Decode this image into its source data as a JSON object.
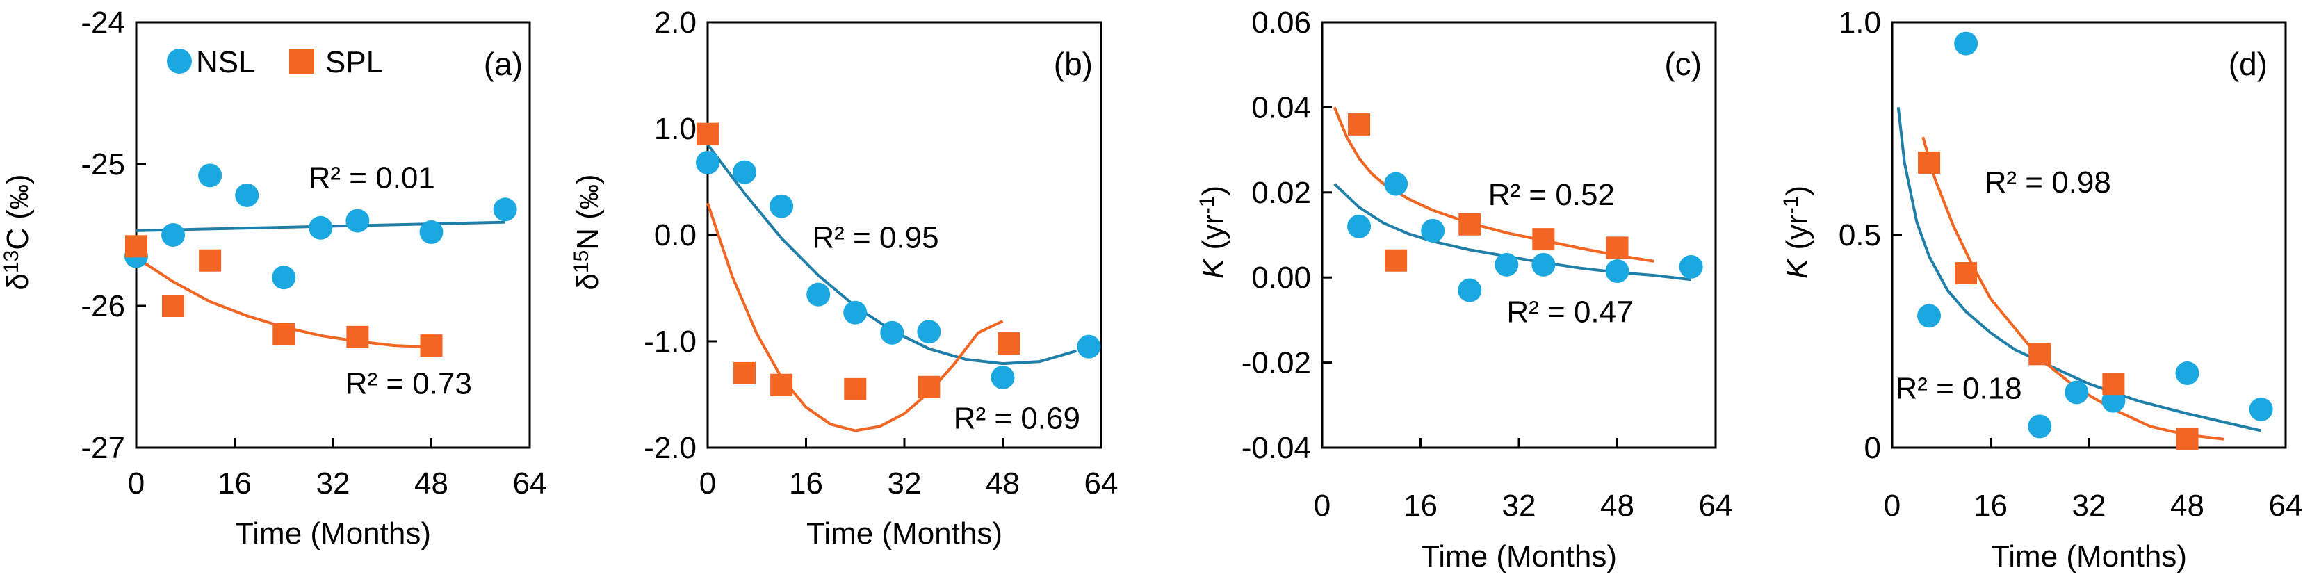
{
  "colors": {
    "nsl": "#1BA8E0",
    "spl": "#F26522",
    "nsl_fit": "#1F7FA8",
    "spl_fit": "#F26522"
  },
  "legend": {
    "nsl": "NSL",
    "spl": "SPL"
  },
  "chart_data": [
    {
      "type": "scatter",
      "tag": "(a)",
      "title": "",
      "xlabel": "Time (Months)",
      "ylabel": {
        "pre": "δ",
        "sup": "13",
        "mid": "C (",
        "unit": "‰",
        "post": ")"
      },
      "xlim": [
        0,
        64
      ],
      "ylim": [
        -27,
        -24
      ],
      "xticks": [
        0,
        16,
        32,
        48,
        64
      ],
      "yticks": [
        -27,
        -26,
        -25,
        -24
      ],
      "series": [
        {
          "name": "NSL",
          "marker": "circle",
          "x": [
            0,
            6,
            12,
            18,
            24,
            30,
            36,
            48,
            60
          ],
          "y": [
            -25.65,
            -25.5,
            -25.08,
            -25.22,
            -25.8,
            -25.45,
            -25.4,
            -25.48,
            -25.32
          ]
        },
        {
          "name": "SPL",
          "marker": "square",
          "x": [
            0,
            6,
            12,
            24,
            36,
            48
          ],
          "y": [
            -25.58,
            -26.0,
            -25.68,
            -26.2,
            -26.22,
            -26.28
          ]
        }
      ],
      "fits": [
        {
          "series": "NSL",
          "x": [
            0,
            10,
            20,
            30,
            40,
            50,
            60
          ],
          "y": [
            -25.47,
            -25.46,
            -25.45,
            -25.44,
            -25.43,
            -25.42,
            -25.41
          ]
        },
        {
          "series": "SPL",
          "x": [
            0,
            6,
            12,
            18,
            24,
            30,
            36,
            42,
            48
          ],
          "y": [
            -25.66,
            -25.83,
            -25.97,
            -26.07,
            -26.15,
            -26.21,
            -26.25,
            -26.28,
            -26.29
          ]
        }
      ],
      "annotations": [
        {
          "text": "R² = 0.01",
          "x": 28,
          "y": -25.17
        },
        {
          "text": "R² = 0.73",
          "x": 34,
          "y": -26.62
        }
      ]
    },
    {
      "type": "scatter",
      "tag": "(b)",
      "title": "",
      "xlabel": "Time (Months)",
      "ylabel": {
        "pre": "δ",
        "sup": "15",
        "mid": "N (",
        "unit": "‰",
        "post": ")"
      },
      "xlim": [
        0,
        64
      ],
      "ylim": [
        -2.0,
        2.0
      ],
      "xticks": [
        0,
        16,
        32,
        48,
        64
      ],
      "yticks": [
        "2.0",
        "1.0",
        "0.0",
        "-1.0",
        "-2.0"
      ],
      "ytick_values": [
        2.0,
        1.0,
        0.0,
        -1.0,
        -2.0
      ],
      "series": [
        {
          "name": "NSL",
          "marker": "circle",
          "x": [
            0,
            6,
            12,
            18,
            24,
            30,
            36,
            48,
            62
          ],
          "y": [
            0.68,
            0.59,
            0.27,
            -0.56,
            -0.73,
            -0.92,
            -0.91,
            -1.34,
            -1.05
          ]
        },
        {
          "name": "SPL",
          "marker": "square",
          "x": [
            0,
            6,
            12,
            24,
            36,
            49
          ],
          "y": [
            0.95,
            -1.3,
            -1.41,
            -1.45,
            -1.43,
            -1.02
          ]
        }
      ],
      "fits": [
        {
          "series": "NSL",
          "x": [
            0,
            6,
            12,
            18,
            24,
            30,
            36,
            42,
            48,
            54,
            60
          ],
          "y": [
            0.85,
            0.39,
            -0.03,
            -0.38,
            -0.67,
            -0.9,
            -1.07,
            -1.17,
            -1.21,
            -1.19,
            -1.09
          ]
        },
        {
          "series": "SPL",
          "x": [
            0,
            4,
            8,
            12,
            16,
            20,
            24,
            28,
            32,
            36,
            40,
            44,
            48
          ],
          "y": [
            0.3,
            -0.39,
            -0.93,
            -1.34,
            -1.62,
            -1.78,
            -1.84,
            -1.8,
            -1.68,
            -1.48,
            -1.22,
            -0.92,
            -0.81
          ]
        }
      ],
      "annotations": [
        {
          "text": "R² = 0.95",
          "x": 17,
          "y": -0.12
        },
        {
          "text": "R² = 0.69",
          "x": 40,
          "y": -1.82
        }
      ]
    },
    {
      "type": "scatter",
      "tag": "(c)",
      "title": "",
      "xlabel": "Time (Months)",
      "ylabel": {
        "italic": "K",
        "rest": " (yr",
        "sup": "-1",
        "post": ")"
      },
      "xlim": [
        0,
        64
      ],
      "ylim": [
        -0.04,
        0.06
      ],
      "xticks": [
        0,
        16,
        32,
        48,
        64
      ],
      "yticks": [
        "0.06",
        "0.04",
        "0.02",
        "0.00",
        "-0.02",
        "-0.04"
      ],
      "ytick_values": [
        0.06,
        0.04,
        0.02,
        0.0,
        -0.02,
        -0.04
      ],
      "series": [
        {
          "name": "NSL",
          "marker": "circle",
          "x": [
            6,
            12,
            18,
            24,
            30,
            36,
            48,
            60
          ],
          "y": [
            0.012,
            0.022,
            0.011,
            -0.003,
            0.003,
            0.003,
            0.0015,
            0.0025
          ]
        },
        {
          "name": "SPL",
          "marker": "square",
          "x": [
            6,
            12,
            24,
            36,
            48
          ],
          "y": [
            0.036,
            0.004,
            0.0125,
            0.009,
            0.007
          ]
        }
      ],
      "fits": [
        {
          "series": "NSL",
          "x": [
            2,
            6,
            10,
            14,
            18,
            24,
            30,
            36,
            42,
            48,
            54,
            60
          ],
          "y": [
            0.022,
            0.0165,
            0.0128,
            0.0103,
            0.0085,
            0.0065,
            0.005,
            0.0035,
            0.0022,
            0.0012,
            0.0005,
            -0.0005
          ]
        },
        {
          "series": "SPL",
          "x": [
            2,
            4,
            6,
            8,
            10,
            14,
            18,
            24,
            30,
            36,
            42,
            48,
            54
          ],
          "y": [
            0.04,
            0.033,
            0.028,
            0.0245,
            0.022,
            0.0185,
            0.0158,
            0.0128,
            0.0105,
            0.0087,
            0.0069,
            0.0052,
            0.0038
          ]
        }
      ],
      "annotations": [
        {
          "text": "R² = 0.52",
          "x": 27,
          "y": 0.017
        },
        {
          "text": "R² = 0.47",
          "x": 30,
          "y": -0.0105
        }
      ]
    },
    {
      "type": "scatter",
      "tag": "(d)",
      "title": "",
      "xlabel": "Time (Months)",
      "ylabel": {
        "italic": "K",
        "rest": " (yr",
        "sup": "-1",
        "post": ")"
      },
      "xlim": [
        0,
        64
      ],
      "ylim": [
        0,
        1.0
      ],
      "xticks": [
        0,
        16,
        32,
        48,
        64
      ],
      "yticks": [
        "1.0",
        "0.5",
        "0"
      ],
      "ytick_values": [
        1.0,
        0.5,
        0.0
      ],
      "series": [
        {
          "name": "NSL",
          "marker": "circle",
          "x": [
            6,
            12,
            24,
            30,
            36,
            48,
            60
          ],
          "y": [
            0.31,
            0.95,
            0.05,
            0.13,
            0.11,
            0.175,
            0.09
          ]
        },
        {
          "name": "SPL",
          "marker": "square",
          "x": [
            6,
            12,
            24,
            36,
            48
          ],
          "y": [
            0.67,
            0.41,
            0.22,
            0.15,
            0.02
          ]
        }
      ],
      "fits": [
        {
          "series": "NSL",
          "x": [
            1,
            2,
            4,
            6,
            9,
            12,
            16,
            20,
            26,
            32,
            40,
            48,
            54,
            60
          ],
          "y": [
            0.8,
            0.67,
            0.53,
            0.45,
            0.37,
            0.32,
            0.27,
            0.23,
            0.19,
            0.15,
            0.11,
            0.08,
            0.06,
            0.04
          ]
        },
        {
          "series": "SPL",
          "x": [
            5,
            7,
            10,
            13,
            16,
            20,
            24,
            30,
            36,
            42,
            48,
            54
          ],
          "y": [
            0.73,
            0.63,
            0.52,
            0.43,
            0.35,
            0.28,
            0.21,
            0.14,
            0.09,
            0.05,
            0.03,
            0.02
          ]
        }
      ],
      "annotations": [
        {
          "text": "R² = 0.98",
          "x": 15,
          "y": 0.6
        },
        {
          "text": "R² =  0.18",
          "x": 0.5,
          "y": 0.115
        }
      ]
    }
  ]
}
